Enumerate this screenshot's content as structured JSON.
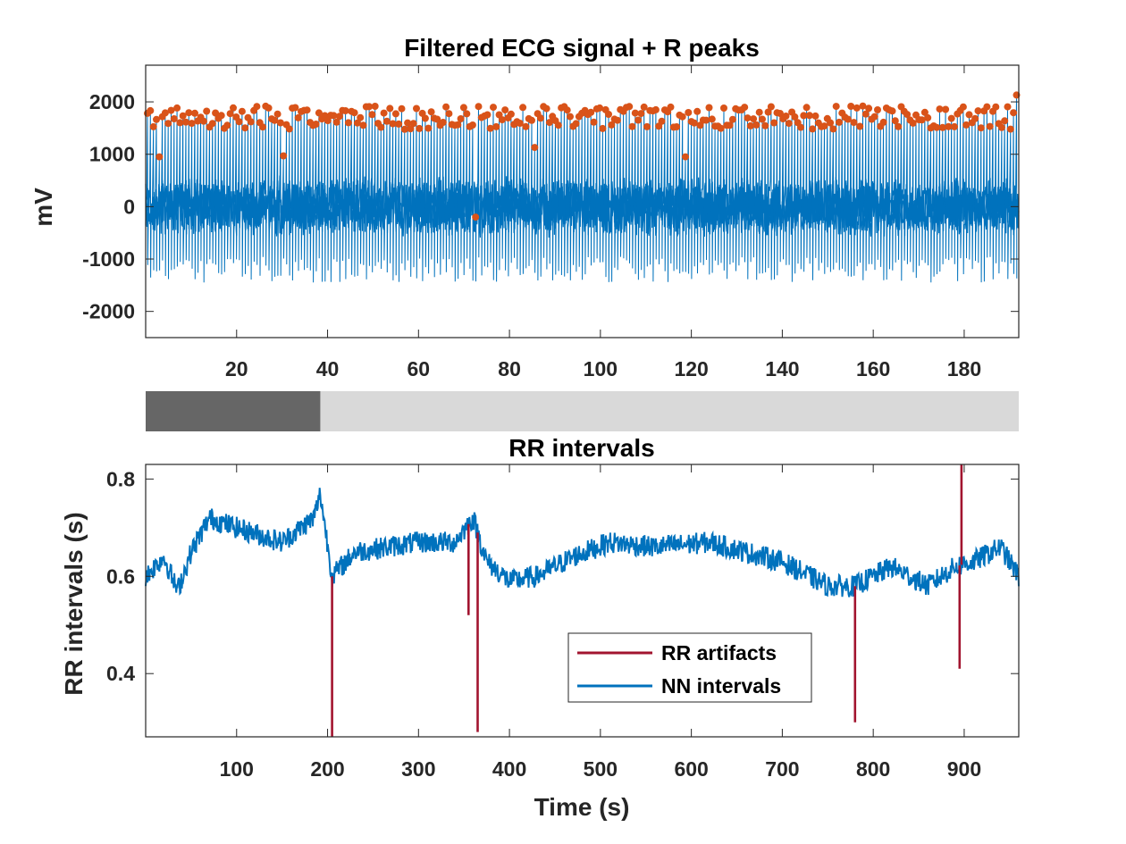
{
  "colors": {
    "ecg_signal": "#0072bd",
    "r_peaks": "#d95319",
    "nn_intervals": "#0072bd",
    "rr_artifacts": "#a2142f",
    "window_slider_selected": "#666666",
    "window_slider_track": "#d9d9d9",
    "axis": "#262626"
  },
  "window_slider": {
    "selected_from_s": 0,
    "selected_to_s": 192,
    "total_s": 960
  },
  "chart_data": [
    {
      "type": "line",
      "title": "Filtered ECG signal + R peaks",
      "xlabel": "",
      "ylabel": "mV",
      "xlim": [
        0,
        192
      ],
      "ylim": [
        -2500,
        2700
      ],
      "xticks": [
        20,
        40,
        60,
        80,
        100,
        120,
        140,
        160,
        180
      ],
      "yticks": [
        -2000,
        -1000,
        0,
        1000,
        2000
      ],
      "xtick_labels": [
        "20",
        "40",
        "60",
        "80",
        "100",
        "120",
        "140",
        "160",
        "180"
      ],
      "ytick_labels": [
        "-2000",
        "-1000",
        "0",
        "1000",
        "2000"
      ],
      "grid": false,
      "series": [
        {
          "style": "line",
          "beat_interval_s": 0.65,
          "r_peak_mean": 1700,
          "trough_mean": -1200,
          "noise_band": [
            -600,
            600
          ]
        },
        {
          "style": "markers",
          "r_peak_outliers": [
            {
              "x": 2.8,
              "y": 950
            },
            {
              "x": 30.5,
              "y": 970
            },
            {
              "x": 72.5,
              "y": -200
            },
            {
              "x": 85.5,
              "y": 1130
            },
            {
              "x": 118.5,
              "y": 950
            },
            {
              "x": 191.5,
              "y": 2130
            }
          ]
        }
      ]
    },
    {
      "type": "line",
      "title": "RR intervals",
      "xlabel": "Time (s)",
      "ylabel": "RR intervals (s)",
      "xlim": [
        0,
        960
      ],
      "ylim": [
        0.27,
        0.83
      ],
      "xticks": [
        100,
        200,
        300,
        400,
        500,
        600,
        700,
        800,
        900
      ],
      "yticks": [
        0.4,
        0.6,
        0.8
      ],
      "xtick_labels": [
        "100",
        "200",
        "300",
        "400",
        "500",
        "600",
        "700",
        "800",
        "900"
      ],
      "ytick_labels": [
        "0.4",
        "0.6",
        "0.8"
      ],
      "grid": false,
      "legend": {
        "location": "bottom-center",
        "entries": [
          "RR artifacts",
          "NN intervals"
        ]
      },
      "series": [
        {
          "name": "RR artifacts",
          "artifacts": [
            {
              "x": 205,
              "y": 0.27
            },
            {
              "x": 355,
              "y": 0.52
            },
            {
              "x": 365,
              "y": 0.28
            },
            {
              "x": 780,
              "y": 0.3
            },
            {
              "x": 895,
              "y": 0.41
            },
            {
              "x": 897,
              "y": 0.83
            }
          ]
        },
        {
          "name": "NN intervals",
          "trend": [
            {
              "x": 0,
              "y": 0.6
            },
            {
              "x": 20,
              "y": 0.64
            },
            {
              "x": 35,
              "y": 0.57
            },
            {
              "x": 50,
              "y": 0.65
            },
            {
              "x": 70,
              "y": 0.72
            },
            {
              "x": 100,
              "y": 0.7
            },
            {
              "x": 150,
              "y": 0.67
            },
            {
              "x": 185,
              "y": 0.72
            },
            {
              "x": 192,
              "y": 0.77
            },
            {
              "x": 205,
              "y": 0.6
            },
            {
              "x": 230,
              "y": 0.65
            },
            {
              "x": 300,
              "y": 0.67
            },
            {
              "x": 340,
              "y": 0.67
            },
            {
              "x": 360,
              "y": 0.72
            },
            {
              "x": 375,
              "y": 0.63
            },
            {
              "x": 400,
              "y": 0.59
            },
            {
              "x": 430,
              "y": 0.6
            },
            {
              "x": 470,
              "y": 0.64
            },
            {
              "x": 510,
              "y": 0.67
            },
            {
              "x": 560,
              "y": 0.66
            },
            {
              "x": 620,
              "y": 0.67
            },
            {
              "x": 700,
              "y": 0.63
            },
            {
              "x": 750,
              "y": 0.58
            },
            {
              "x": 780,
              "y": 0.58
            },
            {
              "x": 820,
              "y": 0.62
            },
            {
              "x": 860,
              "y": 0.58
            },
            {
              "x": 890,
              "y": 0.62
            },
            {
              "x": 910,
              "y": 0.63
            },
            {
              "x": 940,
              "y": 0.66
            },
            {
              "x": 960,
              "y": 0.6
            }
          ]
        }
      ]
    }
  ]
}
